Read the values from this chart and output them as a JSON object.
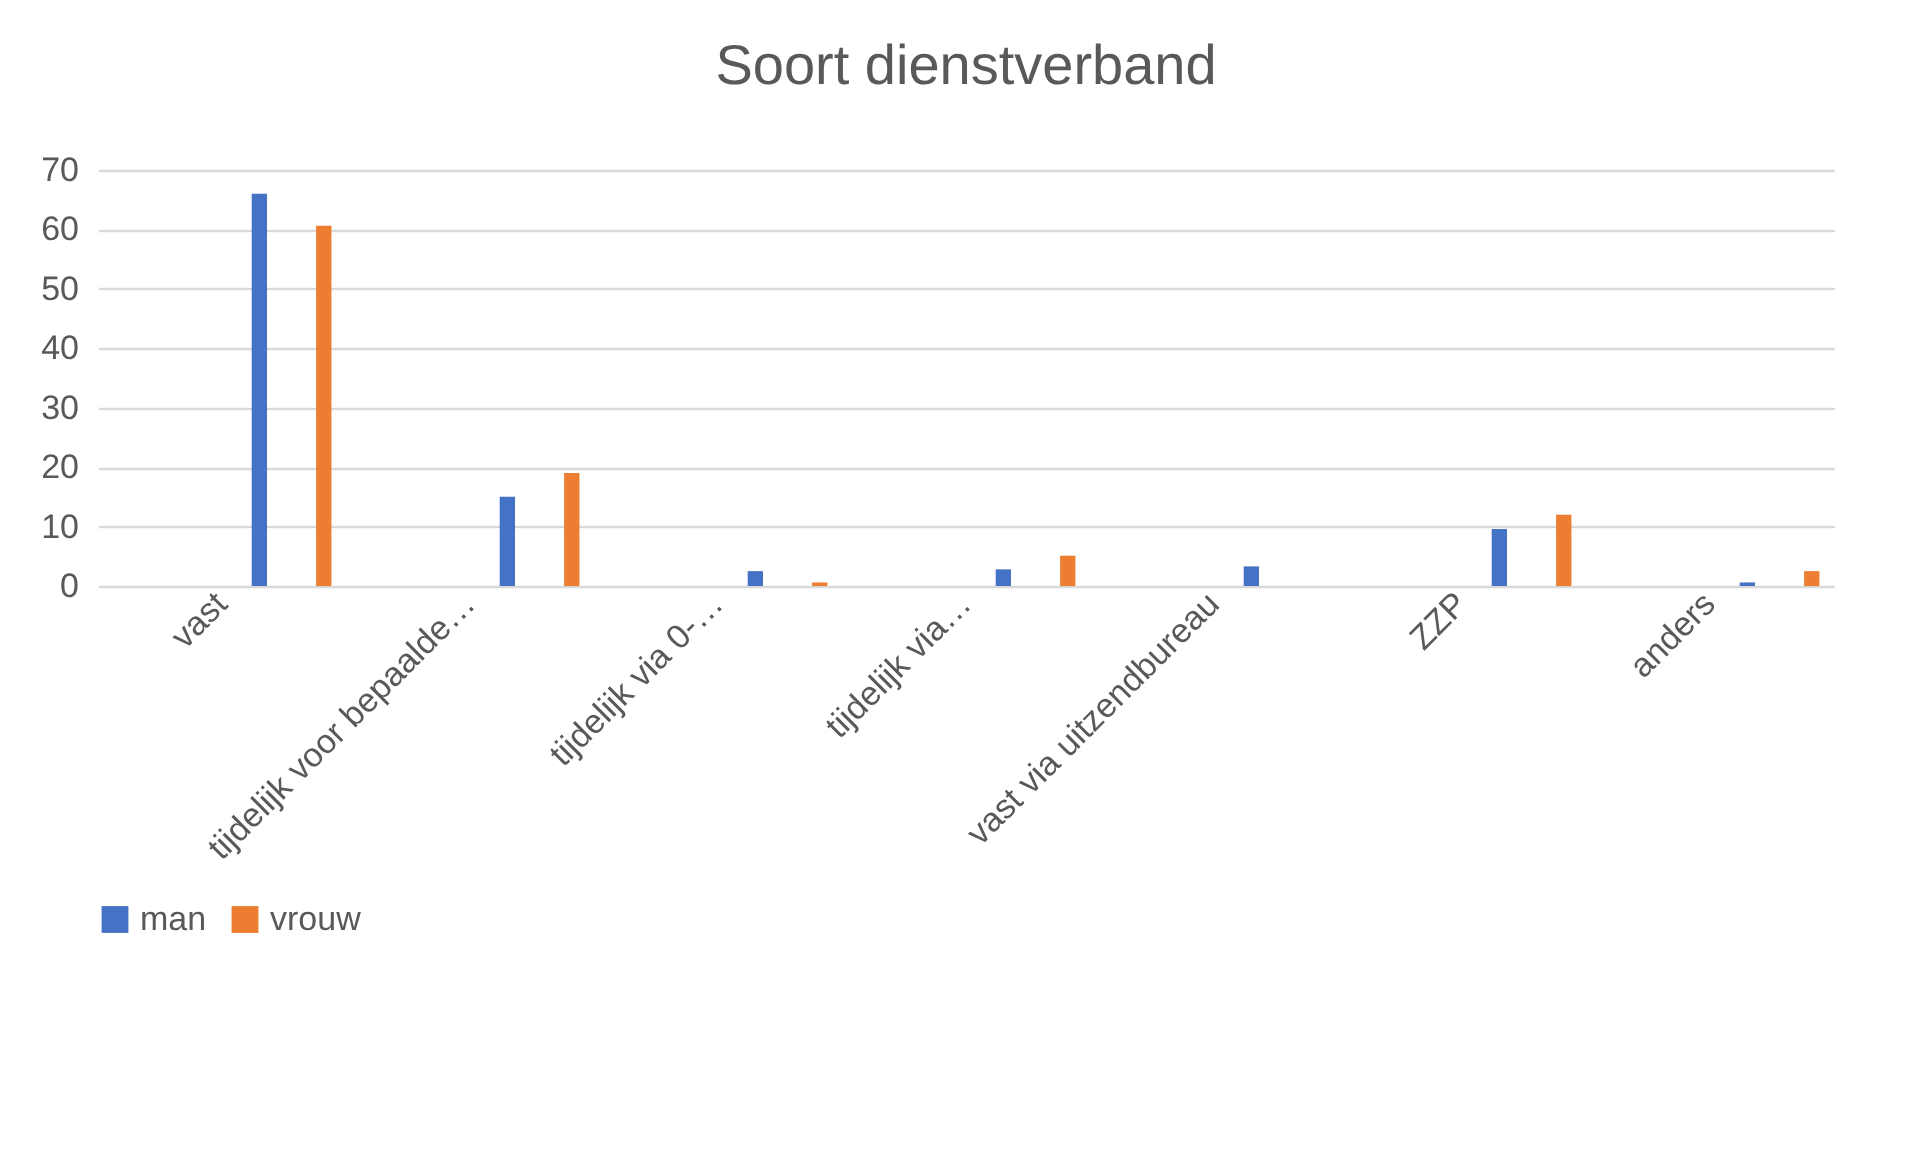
{
  "chart_data": {
    "type": "bar",
    "title": "Soort dienstverband",
    "categories": [
      "vast",
      "tijdelijk voor bepaalde…",
      "tijdelijk via 0-…",
      "tijdelijk via…",
      "vast via uitzendbureau",
      "ZZP",
      "anders"
    ],
    "series": [
      {
        "name": "man",
        "color": "#4472c4",
        "values": [
          66,
          15,
          2.5,
          2.8,
          3.3,
          9.6,
          0.6
        ]
      },
      {
        "name": "vrouw",
        "color": "#ed7d31",
        "values": [
          60.6,
          19,
          0.6,
          5.1,
          0,
          12,
          2.5
        ]
      }
    ],
    "ylim": [
      0,
      70
    ],
    "yticks": [
      0,
      10,
      20,
      30,
      40,
      50,
      60,
      70
    ],
    "grid": "y",
    "legend": "bottom"
  }
}
